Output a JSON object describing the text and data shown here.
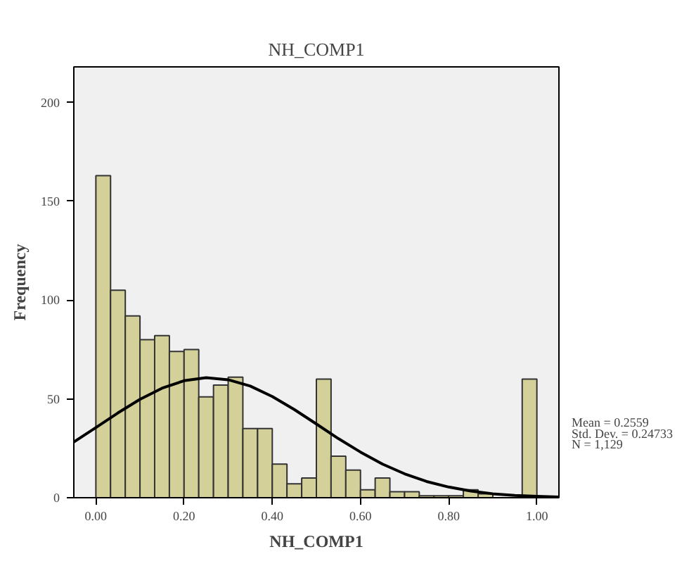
{
  "chart_data": {
    "type": "histogram",
    "title": "NH_COMP1",
    "xlabel": "NH_COMP1",
    "ylabel": "Frequency",
    "bins": [
      0,
      0.0333,
      0.0667,
      0.1,
      0.1333,
      0.1667,
      0.2,
      0.2333,
      0.2667,
      0.3,
      0.3333,
      0.3667,
      0.4,
      0.4333,
      0.4667,
      0.5,
      0.5333,
      0.5667,
      0.6,
      0.6333,
      0.6667,
      0.7,
      0.7333,
      0.7667,
      0.8,
      0.8333,
      0.8667,
      0.9,
      0.9333,
      0.9667,
      1.0
    ],
    "values": [
      163,
      105,
      92,
      80,
      82,
      74,
      75,
      51,
      57,
      61,
      35,
      35,
      17,
      7,
      10,
      60,
      21,
      14,
      4,
      10,
      3,
      3,
      1,
      1,
      1,
      4,
      2,
      null,
      null,
      60
    ],
    "color": "#d4d09a",
    "series": [
      {
        "type": "line",
        "color": "#000000",
        "x": [
          -0.05,
          0,
          0.05,
          0.1,
          0.15,
          0.2,
          0.25,
          0.3,
          0.35,
          0.4,
          0.45,
          0.5,
          0.55,
          0.6,
          0.65,
          0.7,
          0.75,
          0.8,
          0.85,
          0.9,
          0.95,
          1.0,
          1.05
        ],
        "values": [
          28.2,
          35.5,
          42.9,
          49.8,
          55.4,
          59.2,
          60.7,
          59.7,
          56.5,
          51.2,
          44.6,
          37.3,
          29.9,
          23.1,
          17.0,
          12.1,
          8.2,
          5.4,
          3.4,
          2.0,
          1.2,
          0.7,
          0.35
        ]
      }
    ],
    "xlim": [
      -0.05,
      1.05
    ],
    "ylim": [
      0,
      218
    ],
    "xticks": [
      {
        "value": 0,
        "label": "0.00"
      },
      {
        "value": 0.2,
        "label": "0.20"
      },
      {
        "value": 0.4,
        "label": "0.40"
      },
      {
        "value": 0.6,
        "label": "0.60"
      },
      {
        "value": 0.8,
        "label": "0.80"
      },
      {
        "value": 1.0,
        "label": "1.00"
      }
    ],
    "yticks": [
      0,
      50,
      100,
      150,
      200
    ],
    "grid": false,
    "annotations": [
      "Mean = 0.2559",
      "Std. Dev. = 0.24733",
      "N = 1,129"
    ]
  }
}
